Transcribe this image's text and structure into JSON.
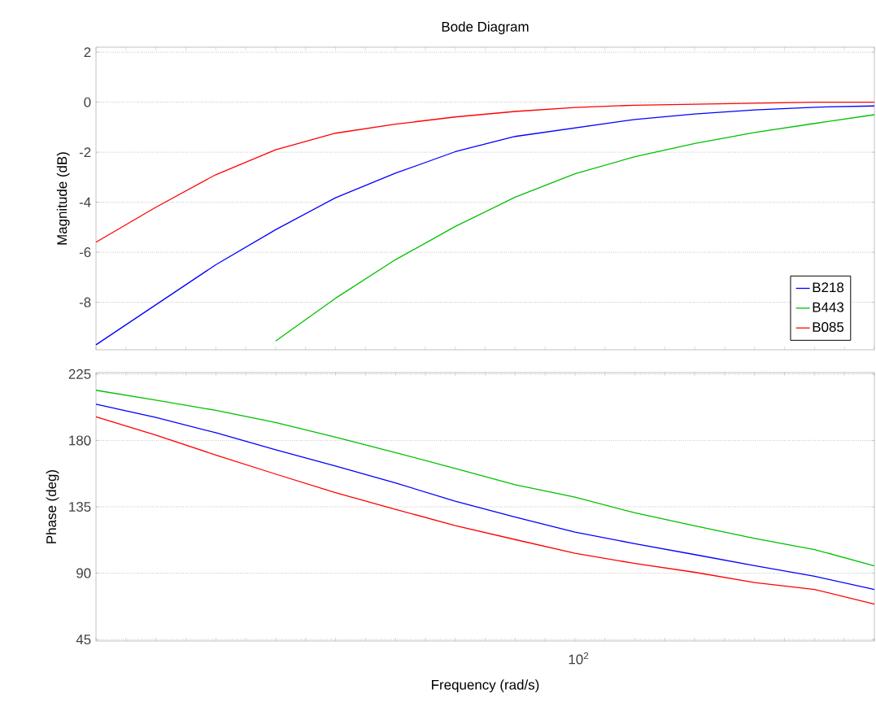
{
  "chart_data": [
    {
      "type": "line",
      "title": "Bode Diagram",
      "ylabel": "Magnitude (dB)",
      "grid": "y",
      "legend": "bottom right",
      "tick_labels": "y",
      "ylim": [
        -9.9,
        2.2
      ],
      "yticks": [
        -8,
        -6,
        -4,
        -2,
        0,
        2
      ],
      "categories": [
        null,
        null,
        null,
        null,
        null,
        null,
        null,
        null,
        null,
        null,
        null,
        null,
        null,
        null
      ],
      "series": [
        {
          "name": "B218",
          "color": "#0000ff",
          "values": [
            -9.7,
            -8.1,
            -6.5,
            -5.1,
            -3.82,
            -2.84,
            -1.98,
            -1.37,
            -1.03,
            -0.69,
            -0.47,
            -0.31,
            -0.2,
            -0.15
          ]
        },
        {
          "name": "B443",
          "color": "#00c000",
          "values": [
            null,
            null,
            null,
            -9.55,
            -7.84,
            -6.3,
            -4.97,
            -3.8,
            -2.86,
            -2.18,
            -1.65,
            -1.21,
            -0.85,
            -0.5
          ]
        },
        {
          "name": "B085",
          "color": "#ff0000",
          "values": [
            -5.6,
            -4.2,
            -2.9,
            -1.9,
            -1.24,
            -0.88,
            -0.59,
            -0.37,
            -0.21,
            -0.12,
            -0.08,
            -0.04,
            0,
            0
          ]
        }
      ]
    },
    {
      "type": "line",
      "xlabel": "Frequency  (rad/s)",
      "ylabel": "Phase (deg)",
      "grid": "y",
      "ylim": [
        44,
        226
      ],
      "yticks": [
        45,
        90,
        135,
        180,
        225
      ],
      "categories": [
        null,
        null,
        null,
        null,
        null,
        null,
        null,
        null,
        null,
        null,
        null,
        null,
        null,
        null
      ],
      "annotations": [
        "10$^{2}$"
      ],
      "series": [
        {
          "color": "#0000ff",
          "values": [
            204.5,
            195.6,
            185.2,
            173.7,
            162.7,
            151.2,
            138.8,
            128,
            117.8,
            110,
            102.6,
            95.1,
            87.9,
            79
          ]
        },
        {
          "color": "#00c000",
          "values": [
            214,
            207.3,
            200.4,
            192.2,
            182.2,
            171.8,
            161,
            150,
            141.6,
            130.9,
            122.1,
            113.6,
            106,
            95
          ]
        },
        {
          "color": "#ff0000",
          "values": [
            196,
            183.6,
            170.1,
            157.2,
            144.6,
            133.3,
            122.3,
            112.8,
            103.5,
            96.6,
            90.6,
            83.6,
            79,
            69
          ]
        }
      ]
    }
  ]
}
